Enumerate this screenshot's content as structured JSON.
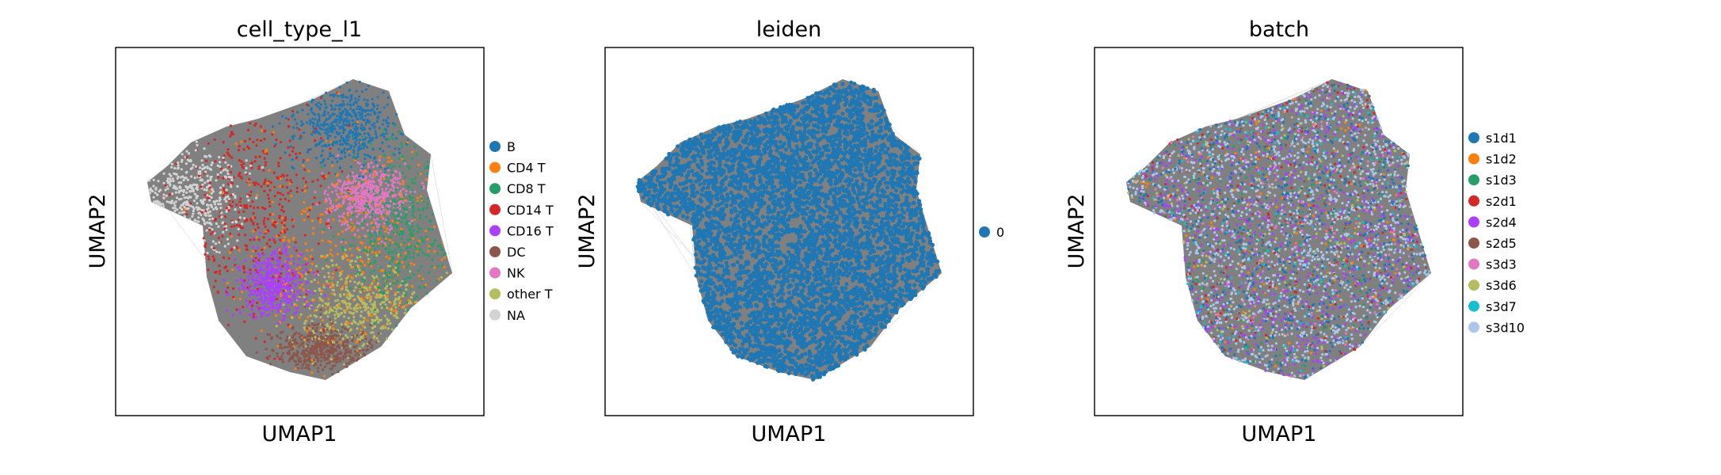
{
  "chart_data": [
    {
      "type": "scatter",
      "title": "cell_type_l1",
      "xlabel": "UMAP1",
      "ylabel": "UMAP2",
      "legend_position": "right",
      "legend": [
        {
          "label": "B",
          "color": "#1f77b4"
        },
        {
          "label": "CD4 T",
          "color": "#ff7f0e"
        },
        {
          "label": "CD8 T",
          "color": "#279e68"
        },
        {
          "label": "CD14 T",
          "color": "#d62728"
        },
        {
          "label": "CD16 T",
          "color": "#aa40fc"
        },
        {
          "label": "DC",
          "color": "#8c564b"
        },
        {
          "label": "NK",
          "color": "#e377c2"
        },
        {
          "label": "other T",
          "color": "#b5bd61"
        },
        {
          "label": "NA",
          "color": "#d3d3d3"
        }
      ]
    },
    {
      "type": "scatter",
      "title": "leiden",
      "xlabel": "UMAP1",
      "ylabel": "UMAP2",
      "legend_position": "right",
      "legend": [
        {
          "label": "0",
          "color": "#1f77b4"
        }
      ]
    },
    {
      "type": "scatter",
      "title": "batch",
      "xlabel": "UMAP1",
      "ylabel": "UMAP2",
      "legend_position": "right",
      "legend": [
        {
          "label": "s1d1",
          "color": "#1f77b4"
        },
        {
          "label": "s1d2",
          "color": "#ff7f0e"
        },
        {
          "label": "s1d3",
          "color": "#279e68"
        },
        {
          "label": "s2d1",
          "color": "#d62728"
        },
        {
          "label": "s2d4",
          "color": "#aa40fc"
        },
        {
          "label": "s2d5",
          "color": "#8c564b"
        },
        {
          "label": "s3d3",
          "color": "#e377c2"
        },
        {
          "label": "s3d6",
          "color": "#b5bd61"
        },
        {
          "label": "s3d7",
          "color": "#17becf"
        },
        {
          "label": "s3d10",
          "color": "#aec7e8"
        }
      ]
    }
  ],
  "colors": {
    "background_points": "#808080",
    "edges": "#a9a9a9",
    "frame": "#000000"
  }
}
